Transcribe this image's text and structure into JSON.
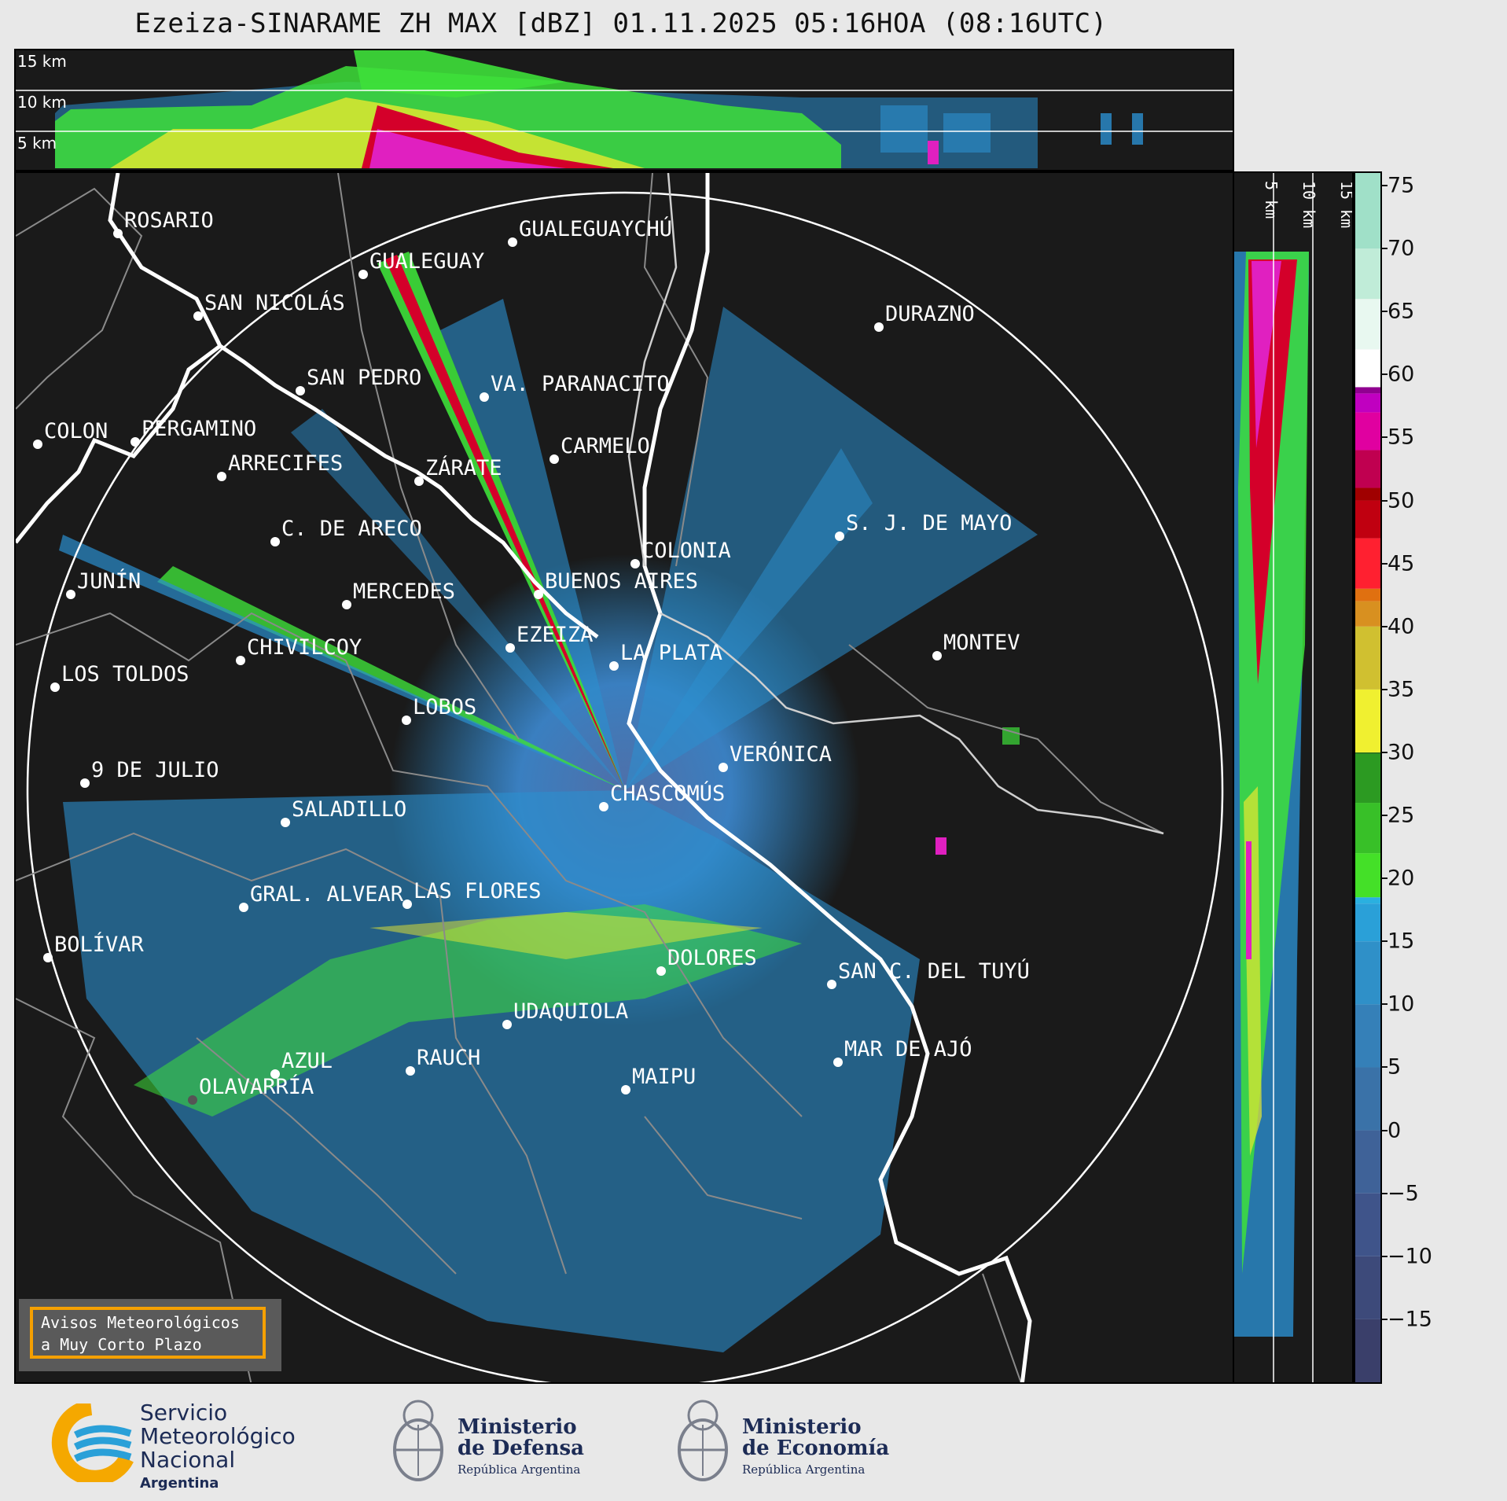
{
  "title": "Ezeiza-SINARAME ZH MAX [dBZ] 01.11.2025 05:16HOA (08:16UTC)",
  "top_xsec": {
    "height_labels": [
      "15 km",
      "10 km",
      "5 km"
    ]
  },
  "side_xsec": {
    "height_labels": [
      "5 km",
      "10 km",
      "15 km"
    ]
  },
  "colorbar": {
    "ticks": [
      "75",
      "70",
      "65",
      "60",
      "55",
      "50",
      "45",
      "40",
      "35",
      "30",
      "25",
      "20",
      "15",
      "10",
      "5",
      "0",
      "−5",
      "−10",
      "−15"
    ],
    "tick_values": [
      75,
      70,
      65,
      60,
      55,
      50,
      45,
      40,
      35,
      30,
      25,
      20,
      15,
      10,
      5,
      0,
      -5,
      -10,
      -15
    ],
    "range": [
      -20,
      76
    ]
  },
  "cities": [
    {
      "name": "ROSARIO"
    },
    {
      "name": "GUALEGUAYCHÚ"
    },
    {
      "name": "GUALEGUAY"
    },
    {
      "name": "SAN NICOLÁS"
    },
    {
      "name": "DURAZNO"
    },
    {
      "name": "SAN PEDRO"
    },
    {
      "name": "VA. PARANACITO"
    },
    {
      "name": "COLON"
    },
    {
      "name": "PERGAMINO"
    },
    {
      "name": "CARMELO"
    },
    {
      "name": "ARRECIFES"
    },
    {
      "name": "ZÁRATE"
    },
    {
      "name": "C. DE ARECO"
    },
    {
      "name": "S. J. DE MAYO"
    },
    {
      "name": "COLONIA"
    },
    {
      "name": "JUNÍN"
    },
    {
      "name": "BUENOS AIRES"
    },
    {
      "name": "MERCEDES"
    },
    {
      "name": "EZEIZA"
    },
    {
      "name": "MONTEV"
    },
    {
      "name": "CHIVILCOY"
    },
    {
      "name": "LA PLATA"
    },
    {
      "name": "LOS TOLDOS"
    },
    {
      "name": "LOBOS"
    },
    {
      "name": "VERÓNICA"
    },
    {
      "name": "9 DE JULIO"
    },
    {
      "name": "CHASCOMÚS"
    },
    {
      "name": "SALADILLO"
    },
    {
      "name": "GRAL. ALVEAR"
    },
    {
      "name": "LAS FLORES"
    },
    {
      "name": "BOLÍVAR"
    },
    {
      "name": "DOLORES"
    },
    {
      "name": "SAN C. DEL TUYÚ"
    },
    {
      "name": "UDAQUIOLA"
    },
    {
      "name": "AZUL"
    },
    {
      "name": "RAUCH"
    },
    {
      "name": "MAR DE AJÓ"
    },
    {
      "name": "OLAVARRÍA"
    },
    {
      "name": "MAIPU"
    }
  ],
  "badge": {
    "line1": "Avisos Meteorológicos",
    "line2": "a Muy Corto Plazo"
  },
  "logos": {
    "smn": {
      "line1": "Servicio",
      "line2": "Meteorológico",
      "line3": "Nacional",
      "line4": "Argentina"
    },
    "defensa": {
      "line1": "Ministerio",
      "line2": "de Defensa",
      "line3": "República Argentina"
    },
    "economia": {
      "line1": "Ministerio",
      "line2": "de Economía",
      "line3": "República Argentina"
    }
  },
  "colors": {
    "background": "#1a1a1a",
    "page": "#e8e8e8",
    "boundary": "#ffffff",
    "smn_orange": "#f5a800",
    "smn_blue": "#2aa0d8"
  }
}
